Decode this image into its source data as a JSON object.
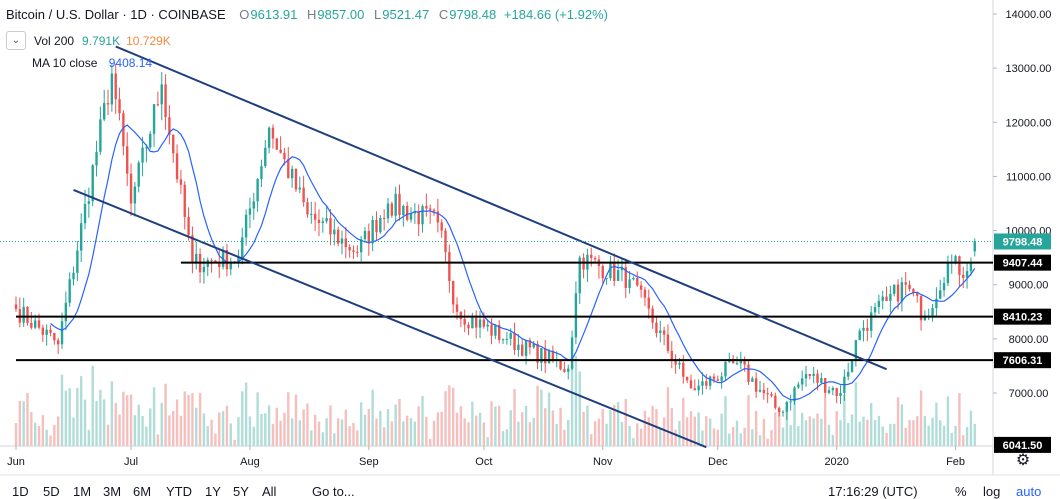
{
  "header": {
    "symbol": "Bitcoin / U.S. Dollar · 1D · COINBASE",
    "open_label": "O",
    "open": "9613.91",
    "high_label": "H",
    "high": "9857.00",
    "low_label": "L",
    "low": "9521.47",
    "close_label": "C",
    "close": "9798.48",
    "change": "+184.66 (+1.92%)"
  },
  "indicators": {
    "volume_label": "Vol 200",
    "volume_value_1": "9.791K",
    "volume_value_2": "10.729K",
    "ma_label": "MA 10 close",
    "ma_value": "9408.14",
    "collapse_icon": "chevron-down-icon"
  },
  "bottom_bar": {
    "ranges": [
      "1D",
      "5D",
      "1M",
      "3M",
      "6M",
      "YTD",
      "1Y",
      "5Y",
      "All"
    ],
    "goto": "Go to...",
    "time": "17:16:29 (UTC)",
    "percent": "%",
    "log": "log",
    "auto": "auto",
    "settings_icon": "gear-icon"
  },
  "colors": {
    "up": "#26a69a",
    "down": "#ef5350",
    "ma": "#2962ff",
    "trendline": "#1f3e7d",
    "level": "#000000",
    "auto": "#2962ff"
  },
  "chart_data": {
    "type": "candlestick",
    "title": "Bitcoin / U.S. Dollar · 1D · COINBASE",
    "y_axis": {
      "ticks": [
        "14000.00",
        "13000.00",
        "12000.00",
        "11000.00",
        "10000.00",
        "9000.00",
        "8000.00",
        "7000.00"
      ],
      "range": [
        6000,
        14250
      ]
    },
    "x_axis": {
      "ticks": [
        "Jun",
        "Jul",
        "Aug",
        "Sep",
        "Oct",
        "Nov",
        "Dec",
        "2020",
        "Feb"
      ]
    },
    "price_labels": [
      {
        "value": 9798.48,
        "label": "9798.48",
        "kind": "last"
      },
      {
        "value": 9407.44,
        "label": "9407.44",
        "kind": "level"
      },
      {
        "value": 8410.23,
        "label": "8410.23",
        "kind": "level"
      },
      {
        "value": 7606.31,
        "label": "7606.31",
        "kind": "level"
      },
      {
        "value": 6041.5,
        "label": "6041.50",
        "kind": "level"
      }
    ],
    "horizontal_levels": [
      {
        "value": 9407.44,
        "from": "2019-07-14",
        "to": "2020-02-15"
      },
      {
        "value": 8410.23,
        "from": "2019-06-01",
        "to": "2020-02-15"
      },
      {
        "value": 7606.31,
        "from": "2019-06-01",
        "to": "2020-02-15"
      }
    ],
    "trendlines": [
      {
        "from": {
          "date": "2019-06-27",
          "value": 13400
        },
        "to": {
          "date": "2020-01-14",
          "value": 7440
        }
      },
      {
        "from": {
          "date": "2019-06-16",
          "value": 10750
        },
        "to": {
          "date": "2019-11-28",
          "value": 6000
        }
      }
    ],
    "key_points": [
      {
        "date": "2019-06-01",
        "value": 8550
      },
      {
        "date": "2019-06-12",
        "value": 7900
      },
      {
        "date": "2019-06-26",
        "value": 12900
      },
      {
        "date": "2019-07-01",
        "value": 10500
      },
      {
        "date": "2019-07-09",
        "value": 12700
      },
      {
        "date": "2019-07-17",
        "value": 9400
      },
      {
        "date": "2019-07-29",
        "value": 9500
      },
      {
        "date": "2019-08-06",
        "value": 11900
      },
      {
        "date": "2019-08-16",
        "value": 10300
      },
      {
        "date": "2019-08-29",
        "value": 9600
      },
      {
        "date": "2019-09-06",
        "value": 10500
      },
      {
        "date": "2019-09-19",
        "value": 10150
      },
      {
        "date": "2019-09-24",
        "value": 8500
      },
      {
        "date": "2019-10-07",
        "value": 8000
      },
      {
        "date": "2019-10-23",
        "value": 7450
      },
      {
        "date": "2019-10-26",
        "value": 9500
      },
      {
        "date": "2019-11-08",
        "value": 9100
      },
      {
        "date": "2019-11-22",
        "value": 7300
      },
      {
        "date": "2019-11-25",
        "value": 7050
      },
      {
        "date": "2019-12-06",
        "value": 7550
      },
      {
        "date": "2019-12-17",
        "value": 6650
      },
      {
        "date": "2019-12-24",
        "value": 7350
      },
      {
        "date": "2020-01-02",
        "value": 7000
      },
      {
        "date": "2020-01-07",
        "value": 8150
      },
      {
        "date": "2020-01-14",
        "value": 8700
      },
      {
        "date": "2020-01-19",
        "value": 9000
      },
      {
        "date": "2020-01-24",
        "value": 8400
      },
      {
        "date": "2020-01-30",
        "value": 9400
      },
      {
        "date": "2020-02-04",
        "value": 9250
      },
      {
        "date": "2020-02-06",
        "value": 9798.48
      }
    ],
    "last_candle": {
      "open": 9613.91,
      "high": 9857.0,
      "low": 9521.47,
      "close": 9798.48
    },
    "series": [
      {
        "name": "MA 10 close",
        "type": "line"
      },
      {
        "name": "Vol 200",
        "type": "volume"
      }
    ]
  }
}
